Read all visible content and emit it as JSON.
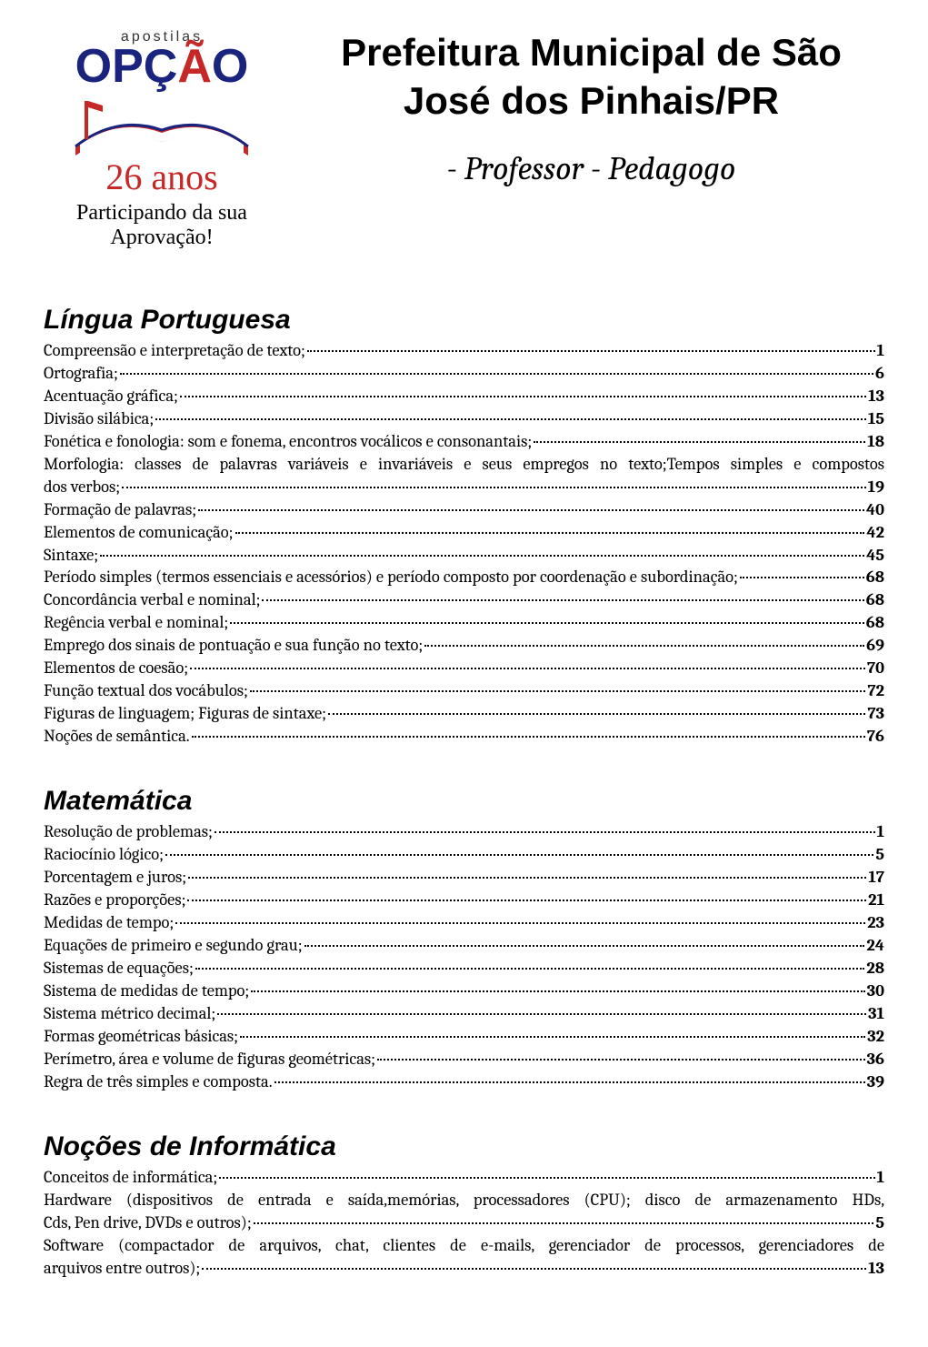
{
  "colors": {
    "background": "#ffffff",
    "text": "#000000",
    "brand_blue": "#1a237e",
    "brand_red": "#c62828",
    "book_red": "#c62828",
    "book_blue": "#1a237e"
  },
  "typography": {
    "main_title_font": "Arial",
    "main_title_weight": "900",
    "main_title_size_pt": 32,
    "subtitle_font": "Cambria",
    "subtitle_style": "italic",
    "subtitle_size_pt": 27,
    "section_title_font": "Arial",
    "section_title_style": "bold italic",
    "section_title_size_pt": 22,
    "body_font": "Cambria",
    "body_size_pt": 14,
    "page_number_weight": "bold"
  },
  "logo": {
    "apostilas": "apostilas",
    "brand": "OPÇÃO",
    "anos": "26 anos",
    "tagline": "Participando da sua Aprovação!"
  },
  "header": {
    "title": "Prefeitura Municipal de São José dos Pinhais/PR",
    "subtitle": "- Professor - Pedagogo"
  },
  "sections": [
    {
      "title": "Língua Portuguesa",
      "entries": [
        {
          "label": "Compreensão e interpretação de texto;",
          "page": "1"
        },
        {
          "label": "Ortografia;",
          "page": "6"
        },
        {
          "label": "Acentuação gráfica;",
          "page": "13"
        },
        {
          "label": "Divisão silábica;",
          "page": "15"
        },
        {
          "label": "Fonética e fonologia: som e fonema, encontros vocálicos e consonantais;",
          "page": "18"
        },
        {
          "label_first": "Morfologia: classes de palavras variáveis e invariáveis e seus empregos no texto;Tempos simples e compostos",
          "label_last": "dos verbos;",
          "page": "19",
          "multiline": true
        },
        {
          "label": "Formação de palavras;",
          "page": "40"
        },
        {
          "label": "Elementos de comunicação;",
          "page": "42"
        },
        {
          "label": "Sintaxe;",
          "page": "45"
        },
        {
          "label": "Período simples (termos essenciais e acessórios) e período composto por coordenação e subordinação;",
          "page": "68"
        },
        {
          "label": "Concordância verbal e nominal;",
          "page": "68"
        },
        {
          "label": "Regência verbal e nominal;",
          "page": "68"
        },
        {
          "label": "Emprego dos sinais de pontuação e sua função no texto;",
          "page": "69"
        },
        {
          "label": "Elementos de coesão;",
          "page": "70"
        },
        {
          "label": "Função textual dos vocábulos;",
          "page": "72"
        },
        {
          "label": "Figuras de linguagem; Figuras de sintaxe;",
          "page": "73"
        },
        {
          "label": " Noções de semântica.",
          "page": "76"
        }
      ]
    },
    {
      "title": "Matemática",
      "entries": [
        {
          "label": "Resolução de problemas;",
          "page": "1"
        },
        {
          "label": "Raciocínio lógico;",
          "page": "5"
        },
        {
          "label": "Porcentagem e juros;",
          "page": "17"
        },
        {
          "label": "Razões e proporções;",
          "page": "21"
        },
        {
          "label": "Medidas de tempo;",
          "page": "23"
        },
        {
          "label": "Equações de primeiro e segundo grau;",
          "page": "24"
        },
        {
          "label": "Sistemas de equações;",
          "page": "28"
        },
        {
          "label": "Sistema de medidas de tempo;",
          "page": "30"
        },
        {
          "label": "Sistema métrico decimal;",
          "page": "31"
        },
        {
          "label": "Formas geométricas básicas;",
          "page": "32"
        },
        {
          "label": "Perímetro, área e volume de figuras geométricas;",
          "page": "36"
        },
        {
          "label": "Regra de três simples e composta.",
          "page": "39"
        }
      ]
    },
    {
      "title": "Noções de Informática",
      "entries": [
        {
          "label": "Conceitos de informática;",
          "page": "1"
        },
        {
          "label_first": "Hardware (dispositivos de entrada e saída,memórias, processadores (CPU); disco de armazenamento HDs,",
          "label_last": "Cds, Pen drive, DVDs e outros);",
          "page": "5",
          "multiline": true
        },
        {
          "label_first": "Software (compactador de arquivos, chat, clientes de e-mails, gerenciador de processos, gerenciadores de",
          "label_last": "arquivos entre outros);",
          "page": "13",
          "multiline": true
        }
      ]
    }
  ]
}
